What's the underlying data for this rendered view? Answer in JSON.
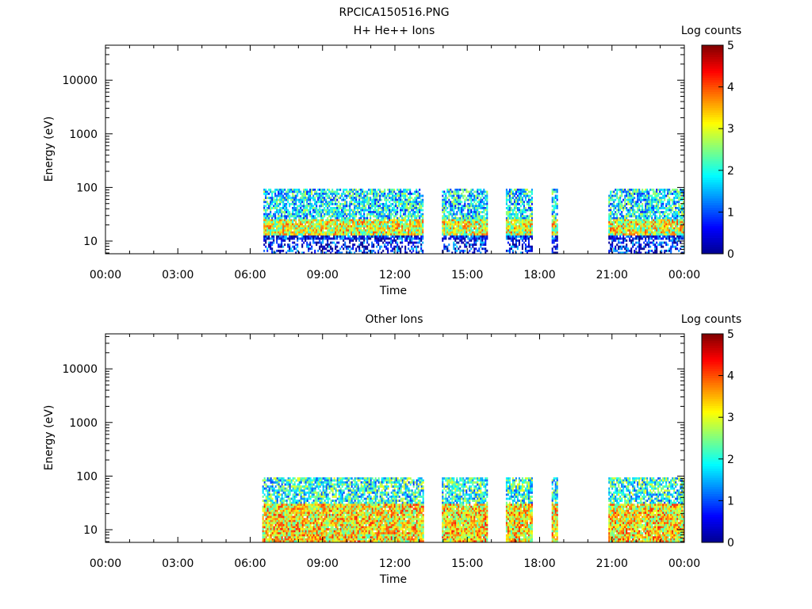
{
  "title": "RPCICA150516.PNG",
  "colors": {
    "colormap": [
      "#00008f",
      "#0000ff",
      "#0080ff",
      "#00ffff",
      "#80ff80",
      "#ffff00",
      "#ff8000",
      "#ff0000",
      "#800000"
    ]
  },
  "chart_data": [
    {
      "type": "heatmap",
      "title": "H+ He++ Ions",
      "xlabel": "Time",
      "ylabel": "Energy (eV)",
      "x_tick_labels": [
        "00:00",
        "03:00",
        "06:00",
        "09:00",
        "12:00",
        "15:00",
        "18:00",
        "21:00",
        "00:00"
      ],
      "xlim_hours": [
        0,
        24
      ],
      "y_scale": "log",
      "ylim": [
        5.8,
        45000
      ],
      "y_tick_labels": [
        "10",
        "100",
        "1000",
        "10000"
      ],
      "y_ticks": [
        10,
        100,
        1000,
        10000
      ],
      "colorbar": {
        "label": "Log counts",
        "range": [
          0,
          5
        ],
        "tick_labels": [
          "0",
          "1",
          "2",
          "3",
          "4",
          "5"
        ]
      },
      "data_intervals_hours": [
        [
          6.55,
          13.15
        ],
        [
          13.95,
          15.85
        ],
        [
          16.6,
          17.7
        ],
        [
          18.5,
          18.7
        ],
        [
          20.85,
          24.0
        ]
      ],
      "energy_range_eV": [
        5.8,
        95
      ],
      "dense_band_eV": [
        13,
        25
      ],
      "sparse_band_eV": [
        5.8,
        11
      ],
      "mean_log_counts_band": 3.0,
      "mean_log_counts_upper": 1.8,
      "mean_log_counts_lower": 0.6
    },
    {
      "type": "heatmap",
      "title": "Other Ions",
      "xlabel": "Time",
      "ylabel": "Energy (eV)",
      "x_tick_labels": [
        "00:00",
        "03:00",
        "06:00",
        "09:00",
        "12:00",
        "15:00",
        "18:00",
        "21:00",
        "00:00"
      ],
      "xlim_hours": [
        0,
        24
      ],
      "y_scale": "log",
      "ylim": [
        5.8,
        45000
      ],
      "y_tick_labels": [
        "10",
        "100",
        "1000",
        "10000"
      ],
      "y_ticks": [
        10,
        100,
        1000,
        10000
      ],
      "colorbar": {
        "label": "Log counts",
        "range": [
          0,
          5
        ],
        "tick_labels": [
          "0",
          "1",
          "2",
          "3",
          "4",
          "5"
        ]
      },
      "data_intervals_hours": [
        [
          6.5,
          13.15
        ],
        [
          13.95,
          15.85
        ],
        [
          16.6,
          17.7
        ],
        [
          18.5,
          18.7
        ],
        [
          20.85,
          24.0
        ]
      ],
      "energy_range_eV": [
        5.8,
        95
      ],
      "dense_band_eV": [
        5.8,
        30
      ],
      "mean_log_counts_band": 3.2,
      "mean_log_counts_upper": 2.0,
      "mean_log_counts_lower": 3.5
    }
  ]
}
